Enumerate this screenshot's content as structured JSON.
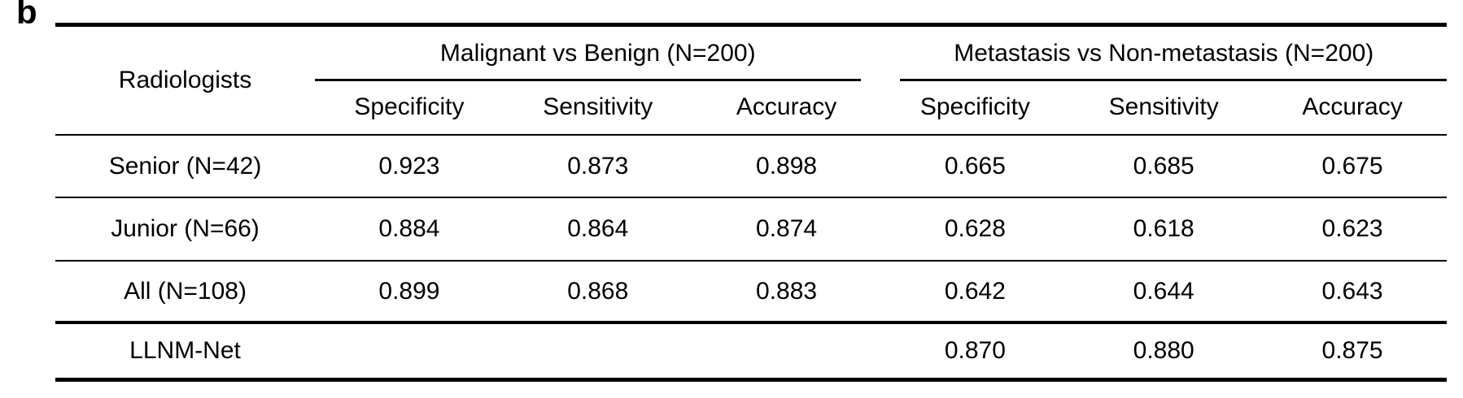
{
  "panel_label": "b",
  "colors": {
    "text": "#000000",
    "background": "#ffffff",
    "rule": "#000000"
  },
  "table": {
    "row_header_label": "Radiologists",
    "groups": [
      {
        "label": "Malignant vs Benign (N=200)",
        "metrics": [
          "Specificity",
          "Sensitivity",
          "Accuracy"
        ]
      },
      {
        "label": "Metastasis vs Non-metastasis (N=200)",
        "metrics": [
          "Specificity",
          "Sensitivity",
          "Accuracy"
        ]
      }
    ],
    "rows": [
      {
        "label": "Senior (N=42)",
        "values": [
          "0.923",
          "0.873",
          "0.898",
          "0.665",
          "0.685",
          "0.675"
        ]
      },
      {
        "label": "Junior (N=66)",
        "values": [
          "0.884",
          "0.864",
          "0.874",
          "0.628",
          "0.618",
          "0.623"
        ]
      },
      {
        "label": "All (N=108)",
        "values": [
          "0.899",
          "0.868",
          "0.883",
          "0.642",
          "0.644",
          "0.643"
        ]
      },
      {
        "label": "LLNM-Net",
        "values": [
          "",
          "",
          "",
          "0.870",
          "0.880",
          "0.875"
        ]
      }
    ]
  },
  "chart_data": {
    "type": "table",
    "title": "Panel b: Diagnostic performance of radiologists vs LLNM-Net",
    "columns": [
      "Radiologists",
      "Malignant vs Benign (N=200) Specificity",
      "Malignant vs Benign (N=200) Sensitivity",
      "Malignant vs Benign (N=200) Accuracy",
      "Metastasis vs Non-metastasis (N=200) Specificity",
      "Metastasis vs Non-metastasis (N=200) Sensitivity",
      "Metastasis vs Non-metastasis (N=200) Accuracy"
    ],
    "rows": [
      [
        "Senior (N=42)",
        0.923,
        0.873,
        0.898,
        0.665,
        0.685,
        0.675
      ],
      [
        "Junior (N=66)",
        0.884,
        0.864,
        0.874,
        0.628,
        0.618,
        0.623
      ],
      [
        "All (N=108)",
        0.899,
        0.868,
        0.883,
        0.642,
        0.644,
        0.643
      ],
      [
        "LLNM-Net",
        null,
        null,
        null,
        0.87,
        0.88,
        0.875
      ]
    ]
  }
}
